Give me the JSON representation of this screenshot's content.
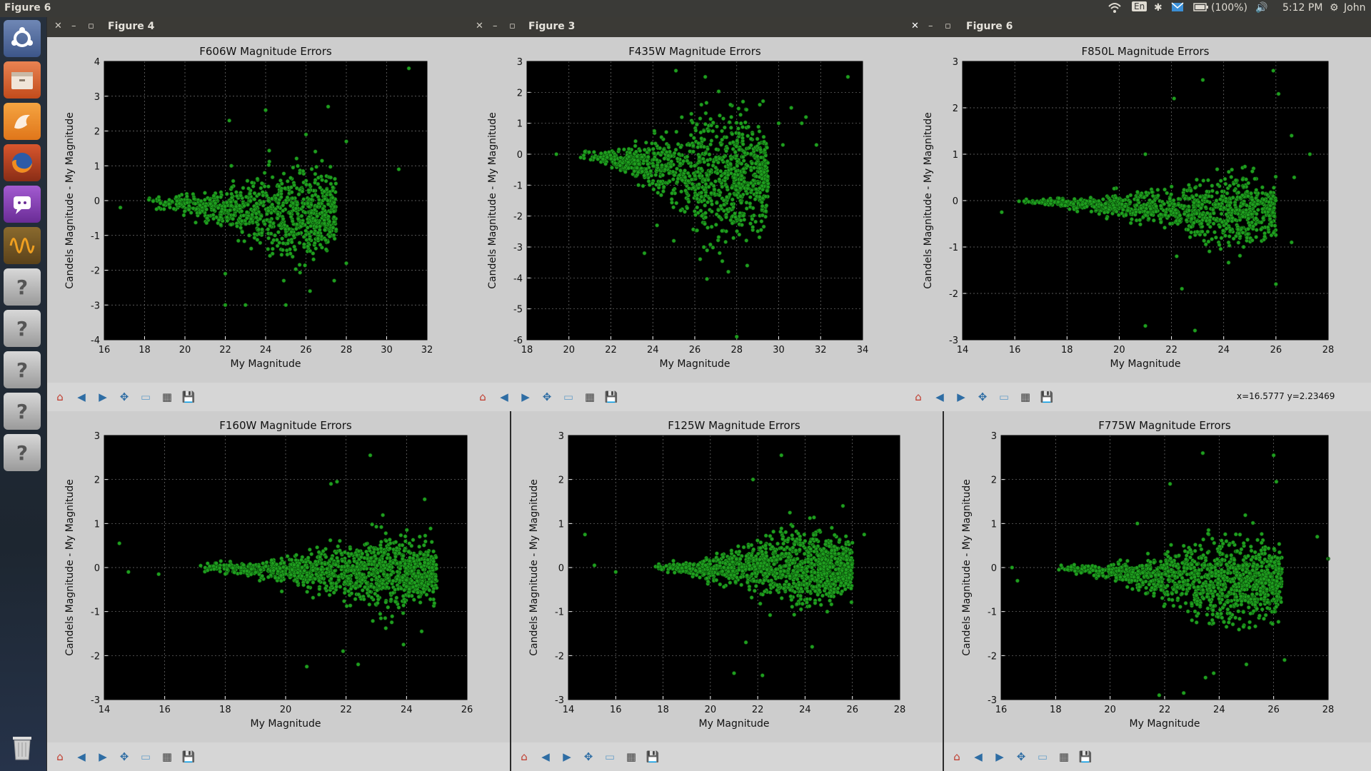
{
  "topbar": {
    "active_title": "Figure 6",
    "lang": "En",
    "battery": "(100%)",
    "time": "5:12 PM",
    "user": "John"
  },
  "launcher": {
    "items": [
      "ubuntu-dash-icon",
      "files-icon",
      "app-orange-icon",
      "firefox-icon",
      "pidgin-icon",
      "oscilloscope-icon",
      "unknown-app-icon",
      "unknown-app-icon",
      "unknown-app-icon",
      "unknown-app-icon",
      "unknown-app-icon",
      "trash-icon"
    ]
  },
  "windows": [
    {
      "id": "fig4",
      "title": "Figure 4",
      "coords": "",
      "chart_data": {
        "type": "scatter",
        "title": "F606W Magnitude Errors",
        "xlabel": "My Magnitude",
        "ylabel": "Candels Magnitude - My Magnitude",
        "xlim": [
          16,
          32
        ],
        "ylim": [
          -4,
          4
        ],
        "xticks": [
          16,
          18,
          20,
          22,
          24,
          26,
          28,
          30,
          32
        ],
        "yticks": [
          -4,
          -3,
          -2,
          -1,
          0,
          1,
          2,
          3,
          4
        ],
        "marker_color": "#1f9e1f",
        "cloud": {
          "x_start": 18,
          "x_peak": 25.5,
          "x_end": 27.5,
          "spread_start": 0.1,
          "spread_peak": 0.9,
          "center": -0.4,
          "n": 900,
          "seed": 4
        },
        "outliers": [
          [
            16.8,
            -0.2
          ],
          [
            22.2,
            2.3
          ],
          [
            22.3,
            1.0
          ],
          [
            23.0,
            -3.0
          ],
          [
            22.0,
            -3.0
          ],
          [
            24.0,
            2.6
          ],
          [
            26.0,
            1.9
          ],
          [
            26.2,
            -2.6
          ],
          [
            27.1,
            2.7
          ],
          [
            28.0,
            1.7
          ],
          [
            28.0,
            -1.8
          ],
          [
            27.4,
            -2.3
          ],
          [
            25.0,
            -3.0
          ],
          [
            30.6,
            0.9
          ],
          [
            31.1,
            3.8
          ],
          [
            24.9,
            -2.3
          ],
          [
            22.0,
            -2.1
          ]
        ]
      }
    },
    {
      "id": "fig3",
      "title": "Figure 3",
      "coords": "",
      "chart_data": {
        "type": "scatter",
        "title": "F435W Magnitude Errors",
        "xlabel": "My Magnitude",
        "ylabel": "Candels Magnitude - My Magnitude",
        "xlim": [
          18,
          34
        ],
        "ylim": [
          -6,
          3
        ],
        "xticks": [
          18,
          20,
          22,
          24,
          26,
          28,
          30,
          32,
          34
        ],
        "yticks": [
          -6,
          -5,
          -4,
          -3,
          -2,
          -1,
          0,
          1,
          2,
          3
        ],
        "marker_color": "#1f9e1f",
        "cloud": {
          "x_start": 20.5,
          "x_peak": 27.0,
          "x_end": 29.5,
          "spread_start": 0.08,
          "spread_peak": 1.5,
          "center": -0.7,
          "n": 1100,
          "seed": 3
        },
        "outliers": [
          [
            19.4,
            0.0
          ],
          [
            25.1,
            2.7
          ],
          [
            26.5,
            2.5
          ],
          [
            27.7,
            1.6
          ],
          [
            28.3,
            1.7
          ],
          [
            29.1,
            1.6
          ],
          [
            30.0,
            1.0
          ],
          [
            30.6,
            1.5
          ],
          [
            31.1,
            1.0
          ],
          [
            31.3,
            1.2
          ],
          [
            31.8,
            0.3
          ],
          [
            33.3,
            2.5
          ],
          [
            23.6,
            -3.2
          ],
          [
            28.0,
            -5.9
          ],
          [
            24.2,
            -2.3
          ],
          [
            27.6,
            -3.8
          ],
          [
            28.5,
            -3.6
          ],
          [
            25.0,
            -2.8
          ],
          [
            30.2,
            0.3
          ]
        ]
      }
    },
    {
      "id": "fig6",
      "title": "Figure 6",
      "coords": "x=16.5777     y=2.23469",
      "chart_data": {
        "type": "scatter",
        "title": "F850L Magnitude Errors",
        "xlabel": "My Magnitude",
        "ylabel": "Candels Magnitude - My Magnitude",
        "xlim": [
          14,
          28
        ],
        "ylim": [
          -3,
          3
        ],
        "xticks": [
          14,
          16,
          18,
          20,
          22,
          24,
          26,
          28
        ],
        "yticks": [
          -3,
          -2,
          -1,
          0,
          1,
          2,
          3
        ],
        "marker_color": "#1f9e1f",
        "cloud": {
          "x_start": 16,
          "x_peak": 24.5,
          "x_end": 26.0,
          "spread_start": 0.03,
          "spread_peak": 0.55,
          "center": -0.25,
          "n": 1000,
          "seed": 6
        },
        "outliers": [
          [
            15.5,
            -0.25
          ],
          [
            21.0,
            1.0
          ],
          [
            21.0,
            -2.7
          ],
          [
            22.1,
            2.2
          ],
          [
            23.2,
            2.6
          ],
          [
            22.9,
            -2.8
          ],
          [
            25.9,
            2.8
          ],
          [
            26.1,
            2.3
          ],
          [
            26.0,
            -1.8
          ],
          [
            27.3,
            1.0
          ],
          [
            26.7,
            0.5
          ],
          [
            26.6,
            -0.9
          ],
          [
            22.4,
            -1.9
          ],
          [
            26.6,
            1.4
          ],
          [
            22.2,
            -1.2
          ]
        ]
      }
    },
    {
      "id": "fig160",
      "title": "",
      "coords": "",
      "chart_data": {
        "type": "scatter",
        "title": "F160W Magnitude Errors",
        "xlabel": "My Magnitude",
        "ylabel": "Candels Magnitude - My Magnitude",
        "xlim": [
          14,
          26
        ],
        "ylim": [
          -3,
          3
        ],
        "xticks": [
          14,
          16,
          18,
          20,
          22,
          24,
          26
        ],
        "yticks": [
          -3,
          -2,
          -1,
          0,
          1,
          2,
          3
        ],
        "marker_color": "#1f9e1f",
        "cloud": {
          "x_start": 17,
          "x_peak": 23.3,
          "x_end": 25.0,
          "spread_start": 0.06,
          "spread_peak": 0.55,
          "center": -0.1,
          "n": 1200,
          "seed": 16
        },
        "outliers": [
          [
            14.5,
            0.55
          ],
          [
            14.8,
            -0.1
          ],
          [
            15.8,
            -0.15
          ],
          [
            21.5,
            1.9
          ],
          [
            21.7,
            1.95
          ],
          [
            22.8,
            2.55
          ],
          [
            20.7,
            -2.25
          ],
          [
            22.4,
            -2.2
          ],
          [
            21.9,
            -1.9
          ],
          [
            24.6,
            1.55
          ],
          [
            23.9,
            -1.75
          ],
          [
            24.5,
            -1.45
          ]
        ]
      }
    },
    {
      "id": "fig125",
      "title": "",
      "coords": "",
      "chart_data": {
        "type": "scatter",
        "title": "F125W Magnitude Errors",
        "xlabel": "My Magnitude",
        "ylabel": "Candels Magnitude - My Magnitude",
        "xlim": [
          14,
          28
        ],
        "ylim": [
          -3,
          3
        ],
        "xticks": [
          14,
          16,
          18,
          20,
          22,
          24,
          26,
          28
        ],
        "yticks": [
          -3,
          -2,
          -1,
          0,
          1,
          2,
          3
        ],
        "marker_color": "#1f9e1f",
        "cloud": {
          "x_start": 17.5,
          "x_peak": 23.5,
          "x_end": 26.0,
          "spread_start": 0.06,
          "spread_peak": 0.6,
          "center": 0.0,
          "n": 1200,
          "seed": 125
        },
        "outliers": [
          [
            14.7,
            0.75
          ],
          [
            15.1,
            0.05
          ],
          [
            16.0,
            -0.1
          ],
          [
            21.8,
            2.0
          ],
          [
            23.0,
            2.55
          ],
          [
            21.0,
            -2.4
          ],
          [
            22.2,
            -2.45
          ],
          [
            21.5,
            -1.7
          ],
          [
            24.3,
            -1.8
          ],
          [
            26.5,
            0.75
          ],
          [
            25.6,
            1.4
          ]
        ]
      }
    },
    {
      "id": "fig775",
      "title": "",
      "coords": "",
      "chart_data": {
        "type": "scatter",
        "title": "F775W Magnitude Errors",
        "xlabel": "My Magnitude",
        "ylabel": "Candels Magnitude - My Magnitude",
        "xlim": [
          16,
          28
        ],
        "ylim": [
          -3,
          3
        ],
        "xticks": [
          16,
          18,
          20,
          22,
          24,
          26,
          28
        ],
        "yticks": [
          -3,
          -2,
          -1,
          0,
          1,
          2,
          3
        ],
        "marker_color": "#1f9e1f",
        "cloud": {
          "x_start": 18,
          "x_peak": 24.3,
          "x_end": 26.3,
          "spread_start": 0.04,
          "spread_peak": 0.7,
          "center": -0.3,
          "n": 1200,
          "seed": 775
        },
        "outliers": [
          [
            16.4,
            0.0
          ],
          [
            16.6,
            -0.3
          ],
          [
            21.0,
            1.0
          ],
          [
            22.2,
            1.9
          ],
          [
            23.4,
            2.6
          ],
          [
            26.0,
            2.55
          ],
          [
            26.1,
            1.95
          ],
          [
            27.6,
            0.7
          ],
          [
            28.0,
            0.2
          ],
          [
            21.8,
            -2.9
          ],
          [
            23.5,
            -2.5
          ],
          [
            23.8,
            -2.4
          ],
          [
            26.4,
            -2.1
          ],
          [
            22.7,
            -2.85
          ],
          [
            25.0,
            -2.2
          ]
        ]
      }
    }
  ]
}
